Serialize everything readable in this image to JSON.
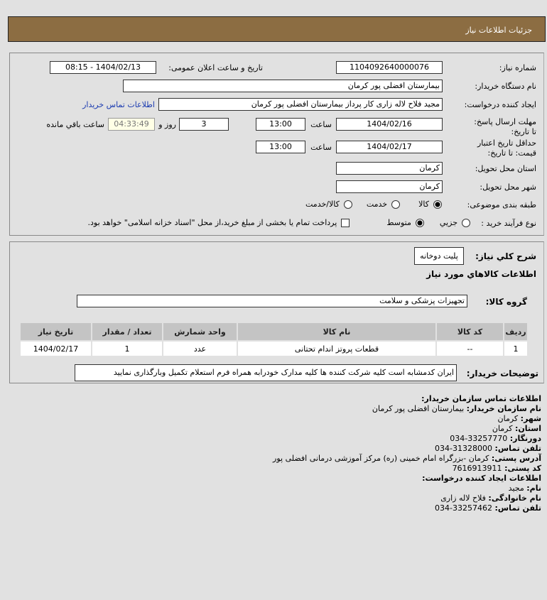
{
  "header": {
    "title": "جزئیات اطلاعات نیاز"
  },
  "form": {
    "need_number_label": "شماره نیاز:",
    "need_number": "1104092640000076",
    "announce_label": "تاریخ و ساعت اعلان عمومی:",
    "announce_value": "1404/02/13 - 08:15",
    "buyer_org_label": "نام دستگاه خریدار:",
    "buyer_org": "بیمارستان افضلی پور کرمان",
    "creator_label": "ایجاد کننده درخواست:",
    "creator": "مجید فلاح لاله زاری کار پرداز بیمارستان افضلی پور کرمان",
    "contact_link": "اطلاعات تماس خریدار",
    "deadline_label": "مهلت ارسال پاسخ: تا تاریخ:",
    "deadline_date": "1404/02/16",
    "time_label": "ساعت",
    "deadline_time": "13:00",
    "days": "3",
    "days_label": "روز و",
    "remaining": "04:33:49",
    "remaining_label": "ساعت باقي مانده",
    "validity_label": "حداقل تاریخ اعتبار قیمت: تا تاریخ:",
    "validity_date": "1404/02/17",
    "validity_time": "13:00",
    "province_label": "استان محل تحویل:",
    "province": "کرمان",
    "city_label": "شهر محل تحویل:",
    "city": "کرمان",
    "category_label": "طبقه بندی موضوعی:",
    "category_options": [
      "کالا",
      "خدمت",
      "کالا/خدمت"
    ],
    "category_selected": "کالا",
    "process_label": "نوع فرآیند خرید :",
    "process_options": [
      "جزیي",
      "متوسط"
    ],
    "process_selected": "متوسط",
    "payment_note": "پرداخت تمام یا بخشی از مبلغ خرید،از محل \"اسناد خزانه اسلامی\" خواهد بود.",
    "payment_checked": false
  },
  "items": {
    "summary_label": "شرح کلي نیاز:",
    "summary": "پلیت دوخانه",
    "section_title": "اطلاعات کالاهاي مورد نیاز",
    "group_label": "گروه کالا:",
    "group": "تجهیزات پزشکی و سلامت",
    "columns": [
      "ردیف",
      "کد کالا",
      "نام کالا",
      "واحد شمارش",
      "تعداد / مقدار",
      "تاریخ نیاز"
    ],
    "rows": [
      [
        "1",
        "--",
        "قطعات پروتز اندام تحتانی",
        "عدد",
        "1",
        "1404/02/17"
      ]
    ],
    "desc_label": "توضیحات خریدار:",
    "desc": "ایران کدمشابه است کلیه شرکت کننده ها کلیه مدارک خودرابه همراه فرم استعلام تکمیل وبارگذاری نمایید"
  },
  "contact": {
    "title": "اطلاعات تماس سازمان خریدار:",
    "lines": [
      {
        "k": "نام سازمان خریدار:",
        "v": "بیمارستان افضلی پور کرمان"
      },
      {
        "k": "شهر:",
        "v": "کرمان"
      },
      {
        "k": "استان:",
        "v": "کرمان"
      },
      {
        "k": "دورنگار:",
        "v": "33257770-034"
      },
      {
        "k": "تلفن تماس:",
        "v": "31328000-034"
      },
      {
        "k": "آدرس پستی:",
        "v": "کرمان -بزرگراه امام خمینی (ره) مرکز آموزشی درمانی افضلی پور"
      },
      {
        "k": "کد پستی:",
        "v": "7616913911"
      }
    ],
    "creator_title": "اطلاعات ایجاد کننده درخواست:",
    "creator_lines": [
      {
        "k": "نام:",
        "v": "مجید"
      },
      {
        "k": "نام خانوادگی:",
        "v": "فلاح لاله زاری"
      },
      {
        "k": "تلفن تماس:",
        "v": "33257462-034"
      }
    ]
  }
}
